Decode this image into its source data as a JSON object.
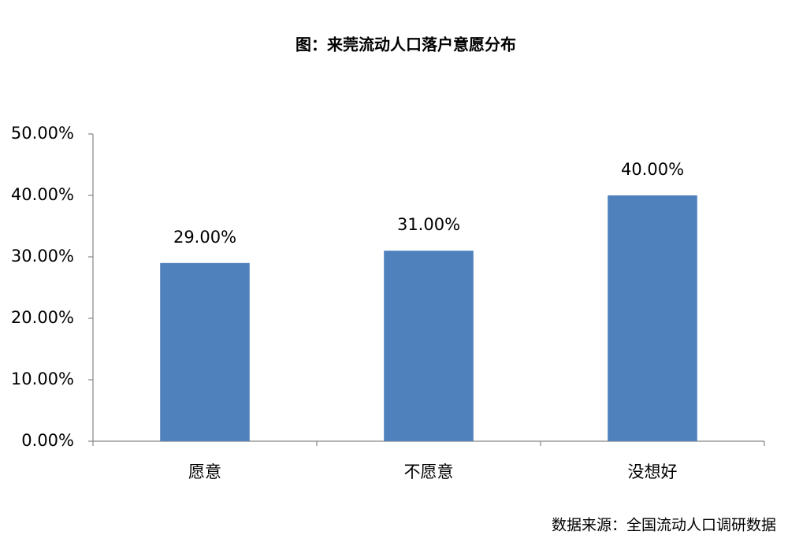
{
  "chart_data": {
    "type": "bar",
    "title": "图：来莞流动人口落户意愿分布",
    "categories": [
      "愿意",
      "不愿意",
      "没想好"
    ],
    "values": [
      29,
      31,
      40
    ],
    "value_labels": [
      "29.00%",
      "31.00%",
      "40.00%"
    ],
    "color": "#4f81bd",
    "ylim": [
      0,
      50
    ],
    "yticks": [
      {
        "value": 0,
        "label": "0.00%"
      },
      {
        "value": 10,
        "label": "10.00%"
      },
      {
        "value": 20,
        "label": "20.00%"
      },
      {
        "value": 30,
        "label": "30.00%"
      },
      {
        "value": 40,
        "label": "40.00%"
      },
      {
        "value": 50,
        "label": "50.00%"
      }
    ],
    "grid": false,
    "source": "数据来源：全国流动人口调研数据"
  }
}
